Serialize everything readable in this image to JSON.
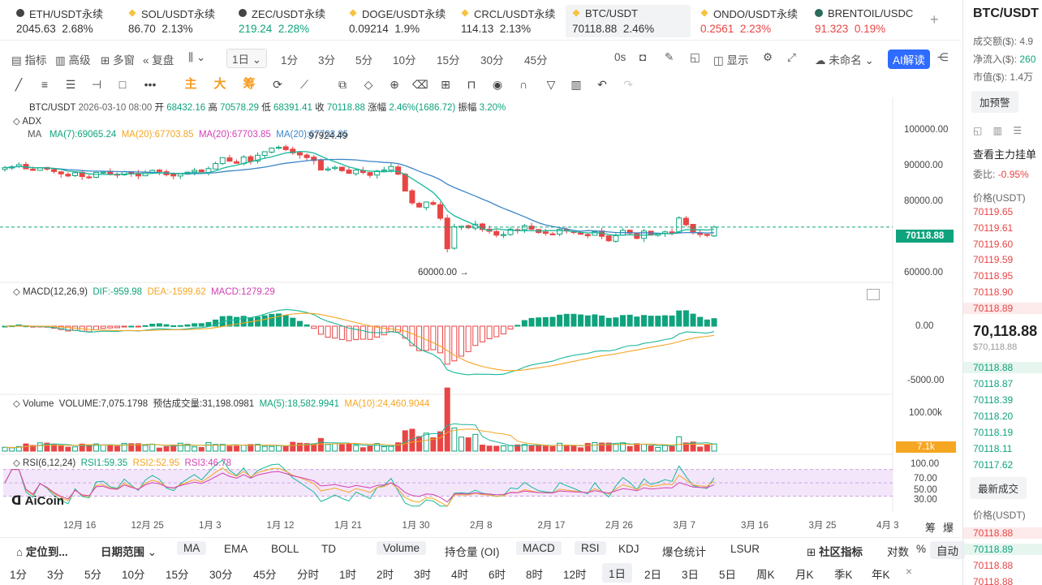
{
  "tabs": [
    {
      "name": "ETH/USDT永续",
      "icon": "eth-icon",
      "price": "2045.63",
      "change": "2.68%",
      "color": "#333"
    },
    {
      "name": "SOL/USDT永续",
      "icon": "sol-icon",
      "price": "86.70",
      "change": "2.13%",
      "color": "#333"
    },
    {
      "name": "ZEC/USDT永续",
      "icon": "zec-icon",
      "price": "219.24",
      "change": "2.28%",
      "color": "#0fa37d"
    },
    {
      "name": "DOGE/USDT永续",
      "icon": "doge-icon",
      "price": "0.09214",
      "change": "1.9%",
      "color": "#333"
    },
    {
      "name": "CRCL/USDT永续",
      "icon": "crcl-icon",
      "price": "114.13",
      "change": "2.13%",
      "color": "#333"
    },
    {
      "name": "BTC/USDT",
      "icon": "btc-icon",
      "price": "70118.88",
      "change": "2.46%",
      "color": "#333"
    },
    {
      "name": "ONDO/USDT永续",
      "icon": "ondo-icon",
      "price": "0.2561",
      "change": "2.23%",
      "color": "#e84545"
    },
    {
      "name": "BRENTOIL/USDC",
      "icon": "brentoil-icon",
      "price": "91.323",
      "change": "0.19%",
      "color": "#e84545"
    }
  ],
  "toolbar": {
    "indicator": "指标",
    "advanced": "高级",
    "multi": "多窗",
    "replay": "复盘",
    "interval_sel": "1日",
    "intervals": [
      "1分",
      "3分",
      "5分",
      "10分",
      "15分",
      "30分",
      "45分"
    ],
    "countdown": "0s",
    "display": "显示",
    "unnamed": "未命名",
    "ai": "AI解读"
  },
  "draw_tools": {
    "zhu": "主",
    "da": "大",
    "chou": "筹"
  },
  "info": {
    "symbol": "BTC/USDT",
    "date": "2026-03-10 08:00",
    "open_l": "开",
    "open": "68432.16",
    "high_l": "高",
    "high": "70578.29",
    "low_l": "低",
    "low": "68391.41",
    "close_l": "收",
    "close": "70118.88",
    "chg_l": "涨幅",
    "chg": "2.46%(1686.72)",
    "amp_l": "振幅",
    "amp": "3.20%"
  },
  "adx": "ADX",
  "ma": {
    "label": "MA",
    "ma7": "MA(7):69065.24",
    "ma20a": "MA(20):67703.85",
    "ma20b": "MA(20):67703.85",
    "ma20c": "MA(20):67703.85"
  },
  "annot": {
    "high": "97924.49",
    "low": "60000.00 →"
  },
  "price_axis": [
    "100000.00",
    "90000.00",
    "80000.00",
    "70000.00",
    "60000.00"
  ],
  "last_price": "70118.88",
  "macd": {
    "label": "MACD(12,26,9)",
    "dif": "DIF:-959.98",
    "dea": "DEA:-1599.62",
    "macd": "MACD:1279.29",
    "axis": [
      "0.00",
      "-5000.00"
    ]
  },
  "volume": {
    "label": "Volume",
    "vol": "VOLUME:7,075.1798",
    "est": "预估成交量:31,198.0981",
    "ma5": "MA(5):18,582.9941",
    "ma10": "MA(10):24,460.9044",
    "axis": "100.00k",
    "last": "7.1k"
  },
  "rsi": {
    "label": "RSI(6,12,24)",
    "r1": "RSI1:59.35",
    "r2": "RSI2:52.95",
    "r3": "RSI3:46.78",
    "axis": [
      "100.00",
      "70.00",
      "50.00",
      "30.00"
    ]
  },
  "logo": "AiCoin",
  "dates": [
    "12月 16",
    "12月 25",
    "1月 3",
    "1月 12",
    "1月 21",
    "1月 30",
    "2月 8",
    "2月 17",
    "2月 26",
    "3月 7",
    "3月 16",
    "3月 25",
    "4月 3"
  ],
  "corner": {
    "chou": "筹",
    "bao": "爆"
  },
  "bottom1": {
    "locate": "定位到...",
    "range": "日期范围",
    "inds": [
      "MA",
      "EMA",
      "BOLL",
      "TD",
      "Volume",
      "持仓量 (OI)",
      "MACD",
      "RSI",
      "KDJ",
      "爆仓统计",
      "LSUR"
    ],
    "community": "社区指标",
    "log": "对数",
    "pct": "%",
    "auto": "自动"
  },
  "bottom2": [
    "1分",
    "3分",
    "5分",
    "10分",
    "15分",
    "30分",
    "45分",
    "分时",
    "1时",
    "2时",
    "3时",
    "4时",
    "6时",
    "8时",
    "12时",
    "1日",
    "2日",
    "3日",
    "5日",
    "周K",
    "月K",
    "季K",
    "年K"
  ],
  "right": {
    "title": "BTC/USDT",
    "vol": "成交额($):",
    "vol_v": "4.9",
    "inflow": "净流入($):",
    "inflow_v": "260",
    "mcap": "市值($):",
    "mcap_v": "1.4万",
    "alert": "加预警",
    "orderbook": "查看主力挂单",
    "ratio_l": "委比:",
    "ratio": "-0.95%",
    "price_h": "价格(USDT)",
    "asks": [
      "70119.65",
      "70119.61",
      "70119.60",
      "70119.59",
      "70118.95",
      "70118.90",
      "70118.89"
    ],
    "big": "70,118.88",
    "usd": "$70,118.88",
    "bids": [
      "70118.88",
      "70118.87",
      "70118.39",
      "70118.20",
      "70118.19",
      "70118.11",
      "70117.62"
    ],
    "latest": "最新成交",
    "price_h2": "价格(USDT)",
    "trades": [
      "70118.88",
      "70118.89",
      "70118.88",
      "70118.88"
    ]
  },
  "chart_data": {
    "type": "candlestick",
    "instrument": "BTC/USDT",
    "interval": "1D",
    "ylim": [
      55000,
      103000
    ],
    "closes": [
      90200,
      90500,
      91200,
      89800,
      89300,
      90100,
      89700,
      88900,
      88100,
      87400,
      88500,
      87200,
      86900,
      88600,
      88700,
      88000,
      87800,
      88800,
      88100,
      87400,
      88600,
      89300,
      88900,
      87800,
      87400,
      88100,
      88700,
      89300,
      88800,
      89900,
      91600,
      93600,
      92400,
      91700,
      93800,
      92300,
      94400,
      95600,
      96800,
      97100,
      96300,
      95200,
      94500,
      93600,
      92600,
      89400,
      89800,
      90300,
      89200,
      88300,
      89400,
      88600,
      87600,
      89100,
      89400,
      90600,
      88000,
      82300,
      78300,
      76900,
      78600,
      77800,
      73100,
      62800,
      70200,
      70400,
      69900,
      71100,
      69300,
      68700,
      67400,
      67600,
      69400,
      69100,
      70600,
      69400,
      68300,
      68000,
      67800,
      69400,
      68800,
      68300,
      67700,
      67200,
      68600,
      67000,
      65500,
      67200,
      69000,
      68000,
      66300,
      68800,
      67400,
      67900,
      68500,
      68200,
      73200,
      70900,
      68200,
      67600,
      67300,
      70118
    ]
  },
  "rsi_levels": [
    70,
    50,
    30
  ]
}
